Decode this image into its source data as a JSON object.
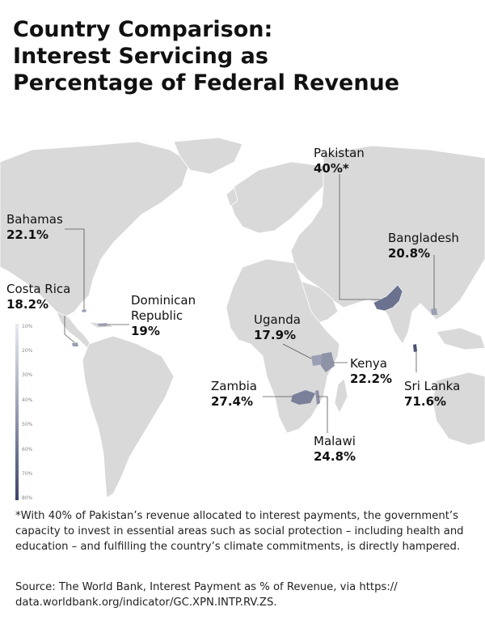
{
  "title": {
    "line1": "Country Comparison:",
    "line2": "Interest Servicing as",
    "line3": "Percentage of Federal Revenue"
  },
  "countries": [
    {
      "id": "pakistan",
      "name": "Pakistan",
      "value_text": "40%*",
      "value": 40
    },
    {
      "id": "bahamas",
      "name": "Bahamas",
      "value_text": "22.1%",
      "value": 22.1
    },
    {
      "id": "bangladesh",
      "name": "Bangladesh",
      "value_text": "20.8%",
      "value": 20.8
    },
    {
      "id": "costa-rica",
      "name": "Costa Rica",
      "value_text": "18.2%",
      "value": 18.2
    },
    {
      "id": "dominican-republic",
      "name_line1": "Dominican",
      "name_line2": "Republic",
      "value_text": "19%",
      "value": 19
    },
    {
      "id": "uganda",
      "name": "Uganda",
      "value_text": "17.9%",
      "value": 17.9
    },
    {
      "id": "kenya",
      "name": "Kenya",
      "value_text": "22.2%",
      "value": 22.2
    },
    {
      "id": "zambia",
      "name": "Zambia",
      "value_text": "27.4%",
      "value": 27.4
    },
    {
      "id": "sri-lanka",
      "name": "Sri Lanka",
      "value_text": "71.6%",
      "value": 71.6
    },
    {
      "id": "malawi",
      "name": "Malawi",
      "value_text": "24.8%",
      "value": 24.8
    }
  ],
  "legend": {
    "ticks": [
      "10%",
      "20%",
      "30%",
      "40%",
      "50%",
      "60%",
      "70%",
      "80%"
    ],
    "color_low": "#e8eaf0",
    "color_high": "#3b4470"
  },
  "colors": {
    "land": "#d9d9d9",
    "highlight": "#5f6784",
    "highlight_light": "#9a9fb3",
    "leader_line": "#555555"
  },
  "footnote": "*With 40% of Pakistan’s revenue allocated to interest payments, the government’s capacity to invest in essential areas such as social protection – including health and education – and fulfilling the country’s climate commitments, is directly hampered.",
  "source": "Source: The World Bank, Interest Payment as % of Revenue, via https:// data.worldbank.org/indicator/GC.XPN.INTP.RV.ZS."
}
